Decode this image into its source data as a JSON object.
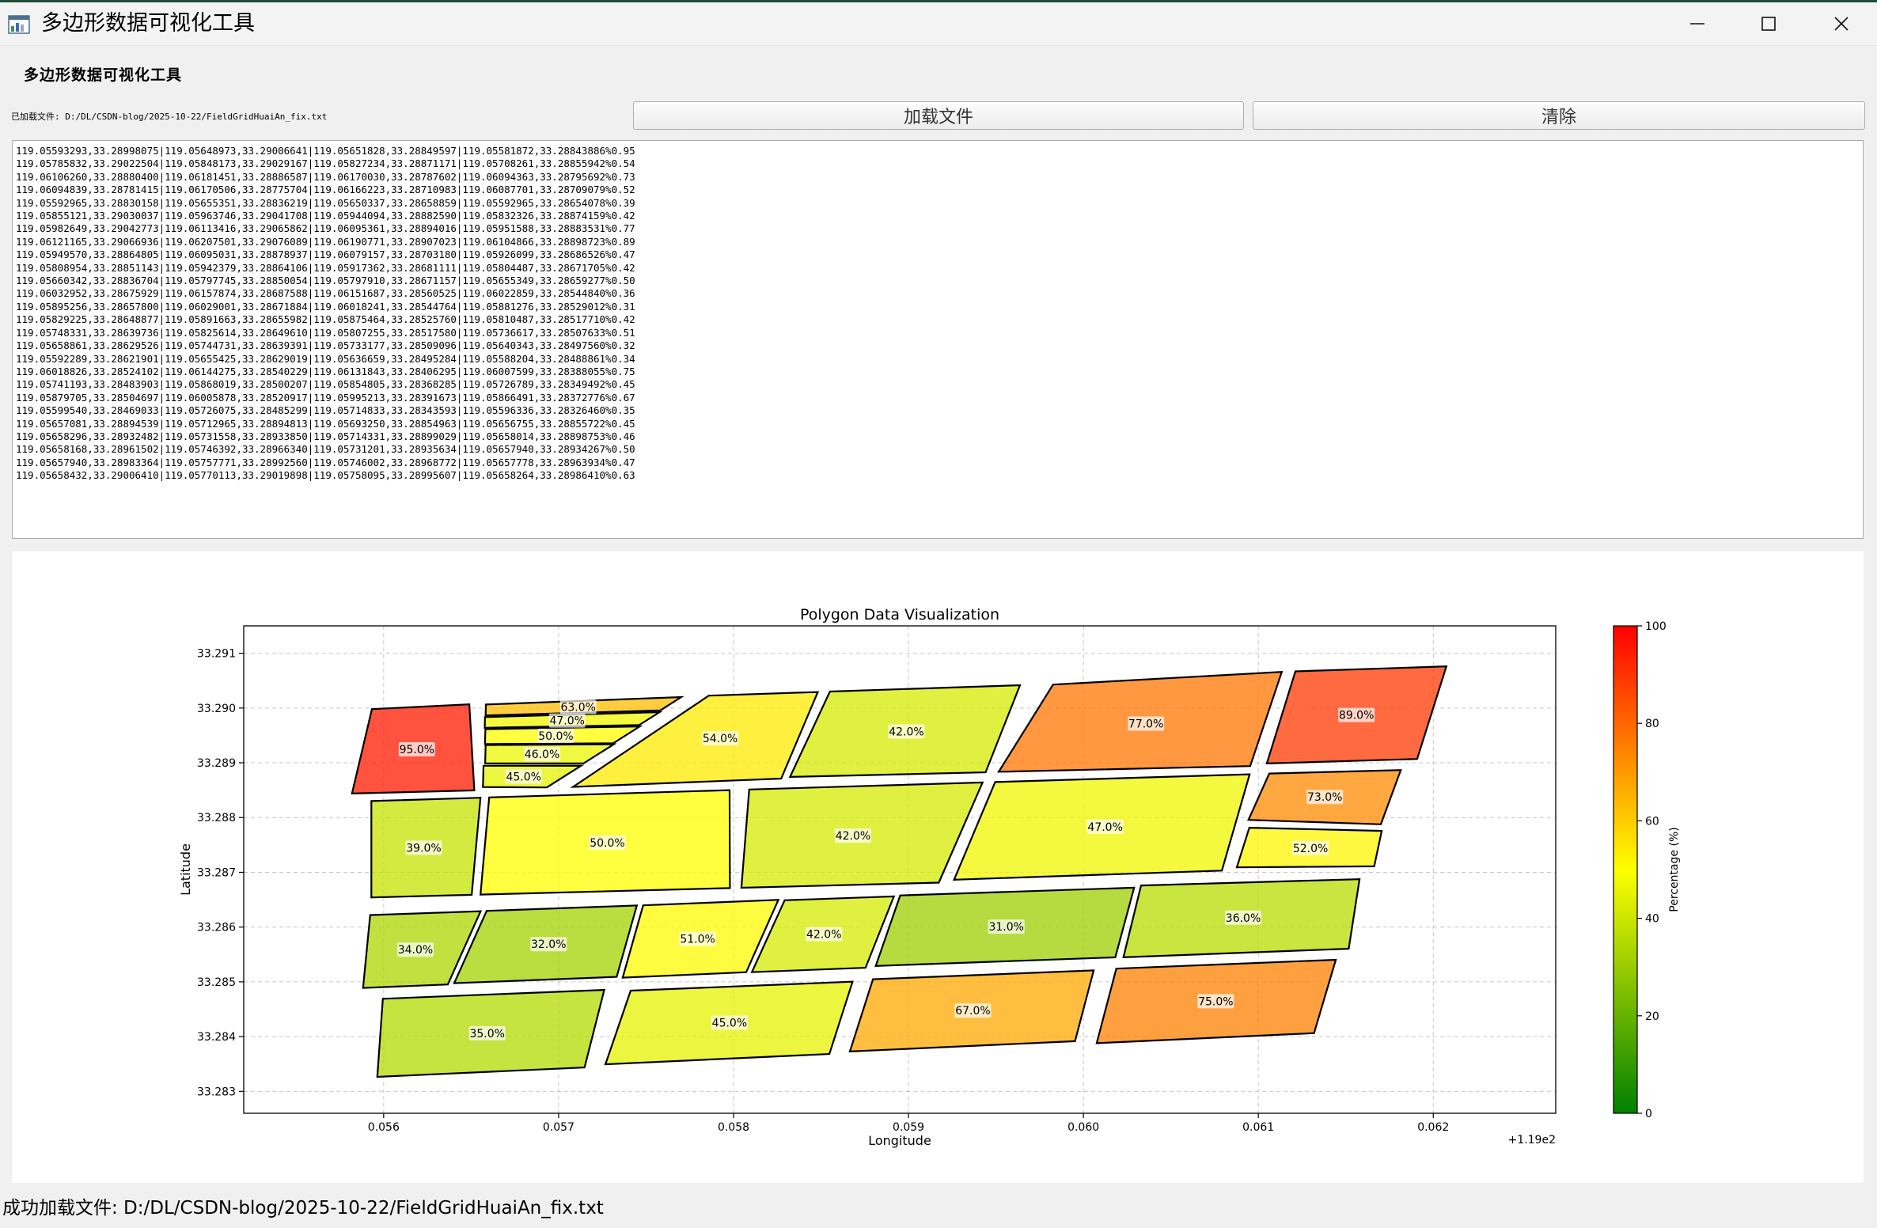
{
  "window": {
    "title": "多边形数据可视化工具",
    "icon": "chart-app-icon"
  },
  "header": {
    "heading": "多边形数据可视化工具",
    "loaded_label": "已加载文件: D:/DL/CSDN-blog/2025-10-22/FieldGridHuaiAn_fix.txt"
  },
  "toolbar": {
    "load_label": "加载文件",
    "clear_label": "清除"
  },
  "text_lines": [
    "119.05593293,33.28998075|119.05648973,33.29006641|119.05651828,33.28849597|119.05581872,33.28843886%0.95",
    "119.05785832,33.29022504|119.05848173,33.29029167|119.05827234,33.28871171|119.05708261,33.28855942%0.54",
    "119.06106260,33.28880400|119.06181451,33.28886587|119.06170030,33.28787602|119.06094363,33.28795692%0.73",
    "119.06094839,33.28781415|119.06170506,33.28775704|119.06166223,33.28710983|119.06087701,33.28709079%0.52",
    "119.05592965,33.28830158|119.05655351,33.28836219|119.05650337,33.28658859|119.05592965,33.28654078%0.39",
    "119.05855121,33.29030037|119.05963746,33.29041708|119.05944094,33.28882590|119.05832326,33.28874159%0.42",
    "119.05982649,33.29042773|119.06113416,33.29065862|119.06095361,33.28894016|119.05951588,33.28883531%0.77",
    "119.06121165,33.29066936|119.06207501,33.29076089|119.06190771,33.28907023|119.06104866,33.28898723%0.89",
    "119.05949570,33.28864805|119.06095031,33.28878937|119.06079157,33.28703180|119.05926099,33.28686526%0.47",
    "119.05808954,33.28851143|119.05942379,33.28864106|119.05917362,33.28681111|119.05804487,33.28671705%0.42",
    "119.05660342,33.28836704|119.05797745,33.28850054|119.05797910,33.28671157|119.05655349,33.28659277%0.50",
    "119.06032952,33.28675929|119.06157874,33.28687588|119.06151687,33.28560525|119.06022859,33.28544840%0.36",
    "119.05895256,33.28657800|119.06029001,33.28671884|119.06018241,33.28544764|119.05881276,33.28529012%0.31",
    "119.05829225,33.28648877|119.05891663,33.28655982|119.05875464,33.28525760|119.05810487,33.28517710%0.42",
    "119.05748331,33.28639736|119.05825614,33.28649610|119.05807255,33.28517580|119.05736617,33.28507633%0.51",
    "119.05658861,33.28629526|119.05744731,33.28639391|119.05733177,33.28509096|119.05640343,33.28497560%0.32",
    "119.05592289,33.28621901|119.05655425,33.28629019|119.05636659,33.28495284|119.05588204,33.28488861%0.34",
    "119.06018826,33.28524102|119.06144275,33.28540229|119.06131843,33.28406295|119.06007599,33.28388055%0.75",
    "119.05741193,33.28483903|119.05868019,33.28500207|119.05854805,33.28368285|119.05726789,33.28349492%0.45",
    "119.05879705,33.28504697|119.06005878,33.28520917|119.05995213,33.28391673|119.05866491,33.28372776%0.67",
    "119.05599540,33.28469033|119.05726075,33.28485299|119.05714833,33.28343593|119.05596336,33.28326460%0.35",
    "119.05657081,33.28894539|119.05712965,33.28894813|119.05693250,33.28854963|119.05656755,33.28855722%0.45",
    "119.05658296,33.28932482|119.05731558,33.28933850|119.05714331,33.28899029|119.05658014,33.28898753%0.46",
    "119.05658168,33.28961502|119.05746392,33.28966340|119.05731201,33.28935634|119.05657940,33.28934267%0.50",
    "119.05657940,33.28983364|119.05757771,33.28992560|119.05746002,33.28968772|119.05657778,33.28963934%0.47",
    "119.05658432,33.29006410|119.05770113,33.29019898|119.05758095,33.28995607|119.05658264,33.28986410%0.63"
  ],
  "chart_data": {
    "type": "polygon-map",
    "title": "Polygon Data Visualization",
    "xlabel": "Longitude",
    "ylabel": "Latitude",
    "x_offset_label": "+1.19e2",
    "xlim": [
      119.0552,
      119.0627
    ],
    "ylim": [
      33.2826,
      33.2915
    ],
    "xticks": [
      119.056,
      119.057,
      119.058,
      119.059,
      119.06,
      119.061,
      119.062
    ],
    "xtick_labels": [
      "0.056",
      "0.057",
      "0.058",
      "0.059",
      "0.060",
      "0.061",
      "0.062"
    ],
    "yticks": [
      33.283,
      33.284,
      33.285,
      33.286,
      33.287,
      33.288,
      33.289,
      33.29,
      33.291
    ],
    "ytick_labels": [
      "33.283",
      "33.284",
      "33.285",
      "33.286",
      "33.287",
      "33.288",
      "33.289",
      "33.290",
      "33.291"
    ],
    "grid": true,
    "colormap": {
      "colors": [
        "#008000",
        "#ffff00",
        "#ff0000"
      ],
      "range": [
        0,
        100
      ],
      "ticks": [
        0,
        20,
        40,
        60,
        80,
        100
      ],
      "label": "Percentage (%)"
    },
    "polygons": [
      {
        "coords": [
          [
            119.05593293,
            33.28998075
          ],
          [
            119.05648973,
            33.29006641
          ],
          [
            119.05651828,
            33.28849597
          ],
          [
            119.05581872,
            33.28843886
          ]
        ],
        "value": 95.0,
        "label": "95.0%"
      },
      {
        "coords": [
          [
            119.05785832,
            33.29022504
          ],
          [
            119.05848173,
            33.29029167
          ],
          [
            119.05827234,
            33.28871171
          ],
          [
            119.05708261,
            33.28855942
          ]
        ],
        "value": 54.0,
        "label": "54.0%"
      },
      {
        "coords": [
          [
            119.0610626,
            33.288804
          ],
          [
            119.06181451,
            33.28886587
          ],
          [
            119.0617003,
            33.28787602
          ],
          [
            119.06094363,
            33.28795692
          ]
        ],
        "value": 73.0,
        "label": "73.0%"
      },
      {
        "coords": [
          [
            119.06094839,
            33.28781415
          ],
          [
            119.06170506,
            33.28775704
          ],
          [
            119.06166223,
            33.28710983
          ],
          [
            119.06087701,
            33.28709079
          ]
        ],
        "value": 52.0,
        "label": "52.0%"
      },
      {
        "coords": [
          [
            119.05592965,
            33.28830158
          ],
          [
            119.05655351,
            33.28836219
          ],
          [
            119.05650337,
            33.28658859
          ],
          [
            119.05592965,
            33.28654078
          ]
        ],
        "value": 39.0,
        "label": "39.0%"
      },
      {
        "coords": [
          [
            119.05855121,
            33.29030037
          ],
          [
            119.05963746,
            33.29041708
          ],
          [
            119.05944094,
            33.2888259
          ],
          [
            119.05832326,
            33.28874159
          ]
        ],
        "value": 42.0,
        "label": "42.0%"
      },
      {
        "coords": [
          [
            119.05982649,
            33.29042773
          ],
          [
            119.06113416,
            33.29065862
          ],
          [
            119.06095361,
            33.28894016
          ],
          [
            119.05951588,
            33.28883531
          ]
        ],
        "value": 77.0,
        "label": "77.0%"
      },
      {
        "coords": [
          [
            119.06121165,
            33.29066936
          ],
          [
            119.06207501,
            33.29076089
          ],
          [
            119.06190771,
            33.28907023
          ],
          [
            119.06104866,
            33.28898723
          ]
        ],
        "value": 89.0,
        "label": "89.0%"
      },
      {
        "coords": [
          [
            119.0594957,
            33.28864805
          ],
          [
            119.06095031,
            33.28878937
          ],
          [
            119.06079157,
            33.2870318
          ],
          [
            119.05926099,
            33.28686526
          ]
        ],
        "value": 47.0,
        "label": "47.0%"
      },
      {
        "coords": [
          [
            119.05808954,
            33.28851143
          ],
          [
            119.05942379,
            33.28864106
          ],
          [
            119.05917362,
            33.28681111
          ],
          [
            119.05804487,
            33.28671705
          ]
        ],
        "value": 42.0,
        "label": "42.0%"
      },
      {
        "coords": [
          [
            119.05660342,
            33.28836704
          ],
          [
            119.05797745,
            33.28850054
          ],
          [
            119.0579791,
            33.28671157
          ],
          [
            119.05655349,
            33.28659277
          ]
        ],
        "value": 50.0,
        "label": "50.0%"
      },
      {
        "coords": [
          [
            119.06032952,
            33.28675929
          ],
          [
            119.06157874,
            33.28687588
          ],
          [
            119.06151687,
            33.28560525
          ],
          [
            119.06022859,
            33.2854484
          ]
        ],
        "value": 36.0,
        "label": "36.0%"
      },
      {
        "coords": [
          [
            119.05895256,
            33.286578
          ],
          [
            119.06029001,
            33.28671884
          ],
          [
            119.06018241,
            33.28544764
          ],
          [
            119.05881276,
            33.28529012
          ]
        ],
        "value": 31.0,
        "label": "31.0%"
      },
      {
        "coords": [
          [
            119.05829225,
            33.28648877
          ],
          [
            119.05891663,
            33.28655982
          ],
          [
            119.05875464,
            33.2852576
          ],
          [
            119.05810487,
            33.2851771
          ]
        ],
        "value": 42.0,
        "label": "42.0%"
      },
      {
        "coords": [
          [
            119.05748331,
            33.28639736
          ],
          [
            119.05825614,
            33.2864961
          ],
          [
            119.05807255,
            33.2851758
          ],
          [
            119.05736617,
            33.28507633
          ]
        ],
        "value": 51.0,
        "label": "51.0%"
      },
      {
        "coords": [
          [
            119.05658861,
            33.28629526
          ],
          [
            119.05744731,
            33.28639391
          ],
          [
            119.05733177,
            33.28509096
          ],
          [
            119.05640343,
            33.2849756
          ]
        ],
        "value": 32.0,
        "label": "32.0%"
      },
      {
        "coords": [
          [
            119.05592289,
            33.28621901
          ],
          [
            119.05655425,
            33.28629019
          ],
          [
            119.05636659,
            33.28495284
          ],
          [
            119.05588204,
            33.28488861
          ]
        ],
        "value": 34.0,
        "label": "34.0%"
      },
      {
        "coords": [
          [
            119.06018826,
            33.28524102
          ],
          [
            119.06144275,
            33.28540229
          ],
          [
            119.06131843,
            33.28406295
          ],
          [
            119.06007599,
            33.28388055
          ]
        ],
        "value": 75.0,
        "label": "75.0%"
      },
      {
        "coords": [
          [
            119.05741193,
            33.28483903
          ],
          [
            119.05868019,
            33.28500207
          ],
          [
            119.05854805,
            33.28368285
          ],
          [
            119.05726789,
            33.28349492
          ]
        ],
        "value": 45.0,
        "label": "45.0%"
      },
      {
        "coords": [
          [
            119.05879705,
            33.28504697
          ],
          [
            119.06005878,
            33.28520917
          ],
          [
            119.05995213,
            33.28391673
          ],
          [
            119.05866491,
            33.28372776
          ]
        ],
        "value": 67.0,
        "label": "67.0%"
      },
      {
        "coords": [
          [
            119.0559954,
            33.28469033
          ],
          [
            119.05726075,
            33.28485299
          ],
          [
            119.05714833,
            33.28343593
          ],
          [
            119.05596336,
            33.2832646
          ]
        ],
        "value": 35.0,
        "label": "35.0%"
      },
      {
        "coords": [
          [
            119.05657081,
            33.28894539
          ],
          [
            119.05712965,
            33.28894813
          ],
          [
            119.0569325,
            33.28854963
          ],
          [
            119.05656755,
            33.28855722
          ]
        ],
        "value": 45.0,
        "label": "45.0%"
      },
      {
        "coords": [
          [
            119.05658296,
            33.28932482
          ],
          [
            119.05731558,
            33.2893385
          ],
          [
            119.05714331,
            33.28899029
          ],
          [
            119.05658014,
            33.28898753
          ]
        ],
        "value": 46.0,
        "label": "46.0%"
      },
      {
        "coords": [
          [
            119.05658168,
            33.28961502
          ],
          [
            119.05746392,
            33.2896634
          ],
          [
            119.05731201,
            33.28935634
          ],
          [
            119.0565794,
            33.28934267
          ]
        ],
        "value": 50.0,
        "label": "50.0%"
      },
      {
        "coords": [
          [
            119.0565794,
            33.28983364
          ],
          [
            119.05757771,
            33.2899256
          ],
          [
            119.05746002,
            33.28968772
          ],
          [
            119.05657778,
            33.28963934
          ]
        ],
        "value": 47.0,
        "label": "47.0%"
      },
      {
        "coords": [
          [
            119.05658432,
            33.2900641
          ],
          [
            119.05770113,
            33.29019898
          ],
          [
            119.05758095,
            33.28995607
          ],
          [
            119.05658264,
            33.2898641
          ]
        ],
        "value": 63.0,
        "label": "63.0%"
      }
    ]
  },
  "status": {
    "message": "成功加载文件: D:/DL/CSDN-blog/2025-10-22/FieldGridHuaiAn_fix.txt"
  }
}
